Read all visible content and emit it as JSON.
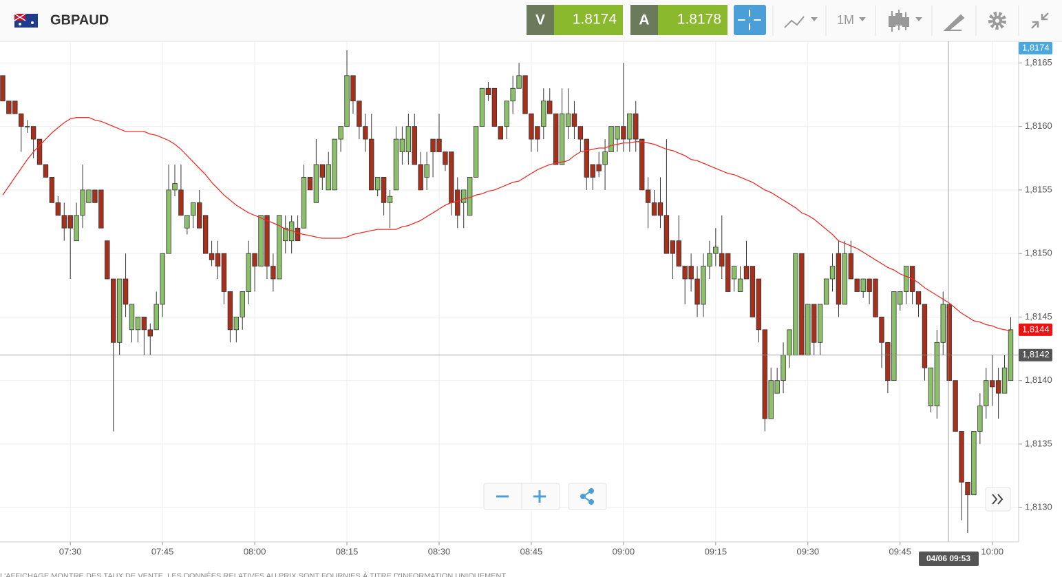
{
  "toolbar": {
    "symbol": "GBPAUD",
    "sell": {
      "label": "V",
      "price": 1.8174
    },
    "buy": {
      "label": "A",
      "price": 1.8178
    },
    "period": "1M"
  },
  "footer": "L'AFFICHAGE MONTRE DES TAUX DE VENTE. LES DONNÉES RELATIVES AU PRIX SONT FOURNIES À TITRE D'INFORMATION UNIQUEMENT",
  "chart_data": {
    "type": "candlestick",
    "categories": [
      null,
      null,
      null,
      null,
      null,
      null,
      null,
      null,
      null,
      null,
      null,
      "07:30",
      null,
      null,
      null,
      null,
      null,
      null,
      null,
      null,
      null,
      null,
      null,
      null,
      null,
      null,
      "07:45",
      null,
      null,
      null,
      null,
      null,
      null,
      null,
      null,
      null,
      null,
      null,
      null,
      null,
      null,
      "08:00",
      null,
      null,
      null,
      null,
      null,
      null,
      null,
      null,
      null,
      null,
      null,
      null,
      null,
      null,
      "08:15",
      null,
      null,
      null,
      null,
      null,
      null,
      null,
      null,
      null,
      null,
      null,
      null,
      null,
      null,
      "08:30",
      null,
      null,
      null,
      null,
      null,
      null,
      null,
      null,
      null,
      null,
      null,
      null,
      null,
      null,
      "08:45",
      null,
      null,
      null,
      null,
      null,
      null,
      null,
      null,
      null,
      null,
      null,
      null,
      null,
      null,
      "09:00",
      null,
      null,
      null,
      null,
      null,
      null,
      null,
      null,
      null,
      null,
      null,
      null,
      null,
      null,
      "09:15",
      null,
      null,
      null,
      null,
      null,
      null,
      null,
      null,
      null,
      null,
      null,
      null,
      null,
      null,
      "09:30",
      null,
      null,
      null,
      null,
      null,
      null,
      null,
      null,
      null,
      null,
      null,
      null,
      null,
      null,
      "09:45",
      null,
      null,
      null,
      null,
      null,
      null,
      null,
      null,
      null,
      null,
      null,
      null,
      null,
      null,
      "10:00",
      null,
      null,
      null
    ],
    "open": [
      1.8164,
      1.8162,
      1.8162,
      1.8161,
      1.816,
      1.816,
      1.8159,
      1.8157,
      1.8156,
      1.8154,
      1.8153,
      1.8153,
      1.8151,
      1.8153,
      1.8154,
      1.8155,
      1.8155,
      1.8151,
      1.8148,
      1.8143,
      1.8148,
      1.8144,
      1.8144,
      1.8145,
      1.8144,
      1.8144,
      1.8146,
      1.815,
      1.8155,
      1.8155,
      1.8152,
      1.8153,
      1.8154,
      1.8153,
      1.815,
      1.815,
      1.815,
      1.8147,
      1.8144,
      1.8145,
      1.8147,
      1.815,
      1.8149,
      1.8153,
      1.8149,
      1.8148,
      1.8151,
      1.8151,
      1.8152,
      1.8152,
      1.8156,
      1.8154,
      1.8157,
      1.8155,
      1.8155,
      1.8159,
      1.816,
      1.8164,
      1.8162,
      1.816,
      1.8159,
      1.8155,
      1.8156,
      1.8154,
      1.8155,
      1.8158,
      1.8158,
      1.816,
      1.8157,
      1.8156,
      1.8159,
      1.8159,
      1.8158,
      1.8158,
      1.8155,
      1.8154,
      1.8153,
      1.8156,
      1.816,
      1.8163,
      1.8163,
      1.816,
      1.816,
      1.8162,
      1.8163,
      1.8164,
      1.8161,
      1.816,
      1.816,
      1.8162,
      1.8161,
      1.8157,
      1.816,
      1.8161,
      1.816,
      1.8159,
      1.8157,
      1.8157,
      1.8157,
      1.8158,
      1.8159,
      1.816,
      1.8159,
      1.8161,
      1.8159,
      1.8155,
      1.8154,
      1.8154,
      1.8153,
      1.8151,
      1.8151,
      1.8149,
      1.8149,
      1.8148,
      1.8146,
      1.8149,
      1.815,
      1.815,
      1.815,
      1.8148,
      1.8147,
      1.8149,
      1.8149,
      1.8148,
      1.8144,
      1.8137,
      1.8139,
      1.814,
      1.8142,
      1.8142,
      1.815,
      1.8142,
      1.8146,
      1.8143,
      1.8146,
      1.8148,
      1.815,
      1.8146,
      1.815,
      1.8148,
      1.8147,
      1.8148,
      1.8148,
      1.8145,
      1.8143,
      1.814,
      1.8146,
      1.8147,
      1.8149,
      1.8147,
      1.8146,
      1.8138,
      1.8138,
      1.8143,
      1.8146,
      1.814,
      1.8136,
      1.8132,
      1.8131,
      1.8136,
      1.8138,
      1.814,
      1.814,
      1.8139,
      1.814
    ],
    "high": [
      1.8164,
      1.8162,
      1.8162,
      1.8161,
      1.81605,
      1.816,
      1.8159,
      1.8157,
      1.8156,
      1.81545,
      1.8154,
      1.8153,
      1.8154,
      1.8157,
      1.8155,
      1.8155,
      1.8155,
      1.8151,
      1.8148,
      1.8148,
      1.815,
      1.8146,
      1.8145,
      1.8145,
      1.81445,
      1.8147,
      1.815,
      1.8157,
      1.8157,
      1.8157,
      1.8153,
      1.8154,
      1.8155,
      1.8153,
      1.8151,
      1.8151,
      1.815,
      1.8147,
      1.8145,
      1.8147,
      1.8151,
      1.815,
      1.8153,
      1.8153,
      1.815,
      1.8153,
      1.8153,
      1.8153,
      1.8153,
      1.8157,
      1.8156,
      1.8159,
      1.8157,
      1.8158,
      1.8159,
      1.816,
      1.8166,
      1.8164,
      1.8162,
      1.8161,
      1.8161,
      1.8156,
      1.8156,
      1.8155,
      1.816,
      1.816,
      1.8161,
      1.8161,
      1.8158,
      1.8158,
      1.8159,
      1.8161,
      1.8158,
      1.8158,
      1.8156,
      1.8155,
      1.8156,
      1.816,
      1.8163,
      1.81635,
      1.8163,
      1.816,
      1.8162,
      1.8164,
      1.8165,
      1.8164,
      1.8161,
      1.816,
      1.8163,
      1.8163,
      1.8161,
      1.8163,
      1.8163,
      1.8162,
      1.816,
      1.8159,
      1.8157,
      1.8158,
      1.8159,
      1.816,
      1.816,
      1.8165,
      1.8161,
      1.8162,
      1.8159,
      1.8156,
      1.8155,
      1.8156,
      1.8159,
      1.8151,
      1.8153,
      1.8149,
      1.815,
      1.8149,
      1.815,
      1.8151,
      1.8152,
      1.8153,
      1.815,
      1.8149,
      1.8149,
      1.8151,
      1.8149,
      1.8148,
      1.8144,
      1.8141,
      1.8141,
      1.8143,
      1.8144,
      1.815,
      1.815,
      1.8146,
      1.8146,
      1.8146,
      1.8148,
      1.815,
      1.8151,
      1.8151,
      1.8151,
      1.8148,
      1.8148,
      1.8148,
      1.8148,
      1.8145,
      1.8143,
      1.8147,
      1.8147,
      1.8149,
      1.8149,
      1.8147,
      1.8146,
      1.8141,
      1.8144,
      1.8147,
      1.8146,
      1.814,
      1.8136,
      1.8132,
      1.8136,
      1.8139,
      1.8141,
      1.8142,
      1.8141,
      1.8142,
      1.8145
    ],
    "low": [
      1.8162,
      1.8161,
      1.8161,
      1.8158,
      1.81595,
      1.81575,
      1.8157,
      1.8156,
      1.8154,
      1.8153,
      1.8151,
      1.8148,
      1.8151,
      1.8152,
      1.8154,
      1.8154,
      1.8152,
      1.8148,
      1.8136,
      1.8142,
      1.8145,
      1.8143,
      1.8143,
      1.8142,
      1.8142,
      1.8144,
      1.8145,
      1.815,
      1.81545,
      1.8153,
      1.81515,
      1.8152,
      1.8152,
      1.815,
      1.8149,
      1.8148,
      1.8146,
      1.8143,
      1.8143,
      1.8144,
      1.8146,
      1.8147,
      1.8149,
      1.8148,
      1.8147,
      1.8148,
      1.815,
      1.815,
      1.8151,
      1.8152,
      1.8155,
      1.8154,
      1.8155,
      1.8155,
      1.8155,
      1.8158,
      1.816,
      1.8161,
      1.8159,
      1.8158,
      1.8155,
      1.81545,
      1.8153,
      1.8152,
      1.8155,
      1.8157,
      1.8157,
      1.8157,
      1.8155,
      1.8155,
      1.8156,
      1.8158,
      1.81565,
      1.8153,
      1.8152,
      1.8152,
      1.8153,
      1.8156,
      1.816,
      1.8162,
      1.816,
      1.8159,
      1.8159,
      1.8161,
      1.8163,
      1.8161,
      1.8158,
      1.8158,
      1.8159,
      1.8161,
      1.8157,
      1.8157,
      1.8159,
      1.8159,
      1.8158,
      1.8155,
      1.8155,
      1.8156,
      1.8155,
      1.8158,
      1.8158,
      1.8158,
      1.8158,
      1.8158,
      1.8155,
      1.8152,
      1.8153,
      1.8152,
      1.815,
      1.8148,
      1.8149,
      1.8146,
      1.8147,
      1.8145,
      1.8145,
      1.8148,
      1.8149,
      1.8148,
      1.8147,
      1.8147,
      1.8147,
      1.8148,
      1.8145,
      1.8143,
      1.8136,
      1.8137,
      1.8139,
      1.8139,
      1.8141,
      1.8142,
      1.8142,
      1.8142,
      1.8142,
      1.8142,
      1.8146,
      1.8147,
      1.8145,
      1.8146,
      1.8148,
      1.8147,
      1.81465,
      1.8146,
      1.8145,
      1.8141,
      1.8139,
      1.814,
      1.81455,
      1.8146,
      1.8146,
      1.8145,
      1.814,
      1.81375,
      1.8137,
      1.8142,
      1.814,
      1.8136,
      1.8129,
      1.8128,
      1.8131,
      1.8135,
      1.8137,
      1.8138,
      1.8137,
      1.8139,
      1.814
    ],
    "close": [
      1.8162,
      1.8161,
      1.8161,
      1.816,
      1.816,
      1.8159,
      1.8157,
      1.8156,
      1.8154,
      1.8153,
      1.8152,
      1.8152,
      1.8153,
      1.8155,
      1.8155,
      1.8154,
      1.8152,
      1.8148,
      1.8143,
      1.8148,
      1.8146,
      1.8146,
      1.8145,
      1.8144,
      1.81435,
      1.8146,
      1.815,
      1.8155,
      1.81555,
      1.8153,
      1.8153,
      1.8154,
      1.8152,
      1.815,
      1.81495,
      1.8149,
      1.8147,
      1.8144,
      1.8145,
      1.8147,
      1.815,
      1.8149,
      1.8153,
      1.8149,
      1.8148,
      1.8153,
      1.8152,
      1.81525,
      1.8151,
      1.8156,
      1.8155,
      1.8157,
      1.8156,
      1.8157,
      1.8159,
      1.816,
      1.8164,
      1.8162,
      1.816,
      1.8159,
      1.8155,
      1.8156,
      1.8154,
      1.81545,
      1.8159,
      1.8159,
      1.816,
      1.8157,
      1.8155,
      1.8157,
      1.8158,
      1.8158,
      1.8157,
      1.8154,
      1.8153,
      1.8155,
      1.8156,
      1.816,
      1.8163,
      1.81625,
      1.816,
      1.8159,
      1.8162,
      1.8163,
      1.8164,
      1.8161,
      1.8159,
      1.8159,
      1.8162,
      1.8161,
      1.8157,
      1.8161,
      1.8161,
      1.816,
      1.8159,
      1.8156,
      1.8156,
      1.81565,
      1.8158,
      1.816,
      1.816,
      1.8159,
      1.8161,
      1.8159,
      1.8155,
      1.8154,
      1.8153,
      1.8153,
      1.815,
      1.815,
      1.8149,
      1.8148,
      1.8148,
      1.8146,
      1.8149,
      1.815,
      1.81505,
      1.8149,
      1.8147,
      1.8149,
      1.8148,
      1.8148,
      1.8145,
      1.8144,
      1.8137,
      1.814,
      1.814,
      1.8142,
      1.8144,
      1.815,
      1.8142,
      1.8146,
      1.8143,
      1.8146,
      1.8148,
      1.8149,
      1.8146,
      1.815,
      1.8148,
      1.8147,
      1.8148,
      1.8147,
      1.8145,
      1.8143,
      1.814,
      1.8147,
      1.8147,
      1.8149,
      1.8147,
      1.8146,
      1.8141,
      1.8141,
      1.8143,
      1.8146,
      1.814,
      1.8136,
      1.8132,
      1.8131,
      1.8136,
      1.8138,
      1.814,
      1.81395,
      1.8139,
      1.8141,
      1.8144
    ],
    "up_color": "#8cbf6a",
    "down_color": "#a5301c",
    "moving_average": {
      "color": "#e8302a",
      "values": [
        1.81546,
        1.81553,
        1.8156,
        1.81567,
        1.81574,
        1.8158,
        1.81585,
        1.8159,
        1.81595,
        1.81599,
        1.81603,
        1.81606,
        1.81607,
        1.81607,
        1.81607,
        1.81605,
        1.81604,
        1.81602,
        1.816,
        1.81598,
        1.81596,
        1.81596,
        1.81596,
        1.81596,
        1.81594,
        1.81593,
        1.81591,
        1.81589,
        1.81586,
        1.81582,
        1.81577,
        1.81572,
        1.81567,
        1.81562,
        1.81556,
        1.81551,
        1.81546,
        1.81542,
        1.81538,
        1.81535,
        1.81532,
        1.8153,
        1.81528,
        1.81526,
        1.81524,
        1.81522,
        1.81519,
        1.81518,
        1.81516,
        1.81515,
        1.81514,
        1.81513,
        1.81512,
        1.81512,
        1.81512,
        1.81512,
        1.81513,
        1.81515,
        1.81516,
        1.81517,
        1.81518,
        1.81519,
        1.81519,
        1.81519,
        1.81519,
        1.81521,
        1.81522,
        1.81524,
        1.81526,
        1.81529,
        1.81532,
        1.81535,
        1.81538,
        1.8154,
        1.81541,
        1.81543,
        1.81544,
        1.81546,
        1.81547,
        1.81549,
        1.8155,
        1.81552,
        1.81554,
        1.81556,
        1.81557,
        1.8156,
        1.81563,
        1.81566,
        1.81568,
        1.8157,
        1.81571,
        1.81572,
        1.81573,
        1.81577,
        1.8158,
        1.81581,
        1.81582,
        1.81583,
        1.81583,
        1.81585,
        1.81586,
        1.81587,
        1.81587,
        1.81588,
        1.81588,
        1.81587,
        1.81586,
        1.81584,
        1.81582,
        1.81581,
        1.81579,
        1.81577,
        1.81574,
        1.81573,
        1.81571,
        1.81569,
        1.81567,
        1.81565,
        1.81563,
        1.81562,
        1.8156,
        1.81558,
        1.81556,
        1.81553,
        1.8155,
        1.81548,
        1.81545,
        1.81542,
        1.81539,
        1.81536,
        1.81532,
        1.8153,
        1.81527,
        1.81523,
        1.81519,
        1.81515,
        1.8151,
        1.81508,
        1.81506,
        1.81504,
        1.81501,
        1.81498,
        1.81495,
        1.81492,
        1.81489,
        1.81487,
        1.81484,
        1.81482,
        1.8148,
        1.81477,
        1.81473,
        1.8147,
        1.81467,
        1.81464,
        1.81461,
        1.81457,
        1.81453,
        1.8145,
        1.81447,
        1.81446,
        1.81444,
        1.81443,
        1.81441,
        1.8144,
        1.81439
      ]
    },
    "ylim": [
      1.81273,
      1.81667
    ],
    "yticks": [
      {
        "value": 1.813,
        "label": "1,8130"
      },
      {
        "value": 1.8135,
        "label": "1,8135"
      },
      {
        "value": 1.814,
        "label": "1,8140"
      },
      {
        "value": 1.8145,
        "label": "1,8145"
      },
      {
        "value": 1.815,
        "label": "1,8150"
      },
      {
        "value": 1.8155,
        "label": "1,8155"
      },
      {
        "value": 1.816,
        "label": "1,8160"
      },
      {
        "value": 1.8165,
        "label": "1,8165"
      }
    ],
    "grid": true,
    "price_tags": [
      {
        "value": 1.8174,
        "label": "1,8174",
        "color": "#4aa8de"
      },
      {
        "value": 1.8144,
        "label": "1,8144",
        "color": "#ee1111"
      }
    ],
    "crosshair": {
      "value": 1.8142,
      "label": "1,8142"
    },
    "crosshair_time": "04/06 09:53"
  }
}
